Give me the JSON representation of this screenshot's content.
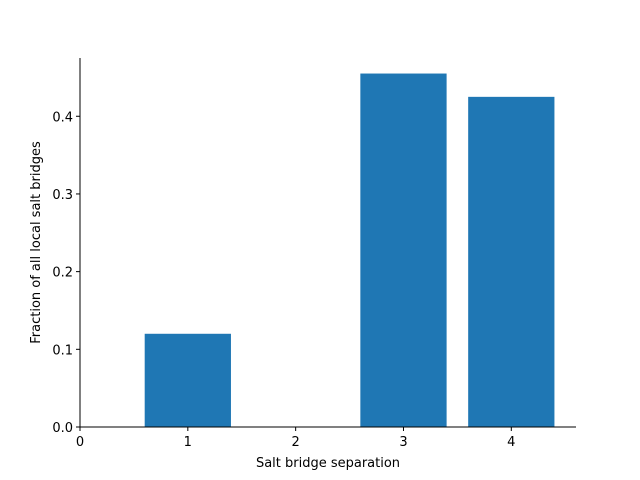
{
  "chart_data": {
    "type": "bar",
    "title": "",
    "xlabel": "Salt bridge separation",
    "ylabel": "Fraction of all local salt bridges",
    "categories": [
      1,
      2,
      3,
      4
    ],
    "values": [
      0.12,
      0.0,
      0.455,
      0.425
    ],
    "xlim": [
      0,
      4.6
    ],
    "ylim": [
      0,
      0.475
    ],
    "xticks": [
      0,
      1,
      2,
      3,
      4
    ],
    "xtick_labels": [
      "0",
      "1",
      "2",
      "3",
      "4"
    ],
    "yticks": [
      0.0,
      0.1,
      0.2,
      0.3,
      0.4
    ],
    "ytick_labels": [
      "0.0",
      "0.1",
      "0.2",
      "0.3",
      "0.4"
    ],
    "bar_width": 0.8,
    "bar_color": "#1f77b4",
    "grid": false,
    "spines": [
      "left",
      "bottom"
    ]
  }
}
